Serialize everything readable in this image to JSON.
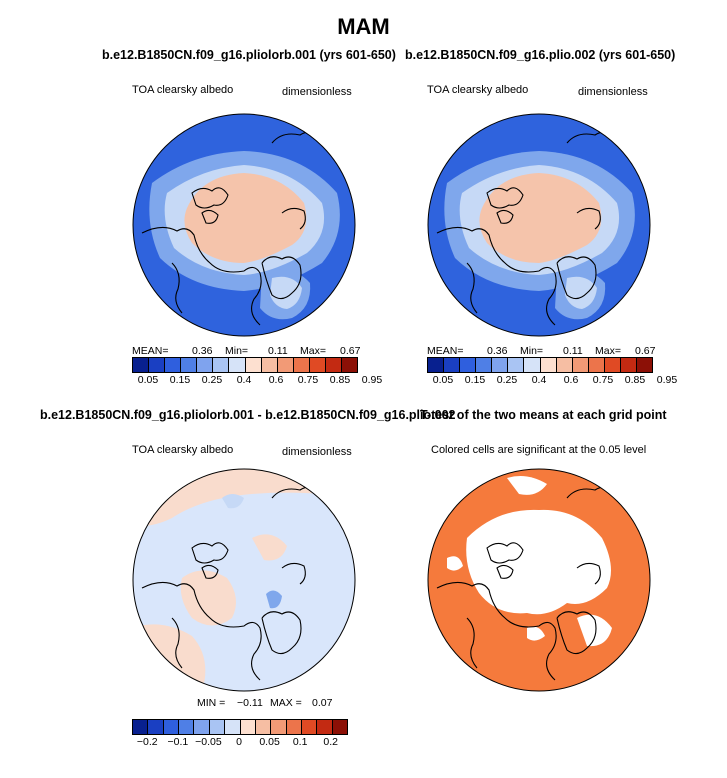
{
  "main_title": "MAM",
  "panels": [
    {
      "title": "b.e12.B1850CN.f09_g16.pliolorb.001 (yrs 601-650)",
      "left_label": "TOA clearsky albedo",
      "right_label": "dimensionless",
      "stats": {
        "mean_label": "MEAN=",
        "mean": "0.36",
        "min_label": "Min=",
        "min": "0.11",
        "max_label": "Max=",
        "max": "0.67"
      },
      "ticks": [
        "0.05",
        "0.15",
        "0.25",
        "0.4",
        "0.6",
        "0.75",
        "0.85",
        "0.95"
      ]
    },
    {
      "title": "b.e12.B1850CN.f09_g16.plio.002 (yrs 601-650)",
      "left_label": "TOA clearsky albedo",
      "right_label": "dimensionless",
      "stats": {
        "mean_label": "MEAN=",
        "mean": "0.36",
        "min_label": "Min=",
        "min": "0.11",
        "max_label": "Max=",
        "max": "0.67"
      },
      "ticks": [
        "0.05",
        "0.15",
        "0.25",
        "0.4",
        "0.6",
        "0.75",
        "0.85",
        "0.95"
      ]
    },
    {
      "title": "b.e12.B1850CN.f09_g16.pliolorb.001 - b.e12.B1850CN.f09_g16.plio.002",
      "left_label": "TOA clearsky albedo",
      "right_label": "dimensionless",
      "stats": {
        "min_label": "MIN =",
        "min": "−0.11",
        "max_label": "MAX =",
        "max": "0.07"
      },
      "ticks": [
        "−0.2",
        "−0.1",
        "−0.05",
        "0",
        "0.05",
        "0.1",
        "0.2"
      ]
    },
    {
      "title": "T-test of the two means at each grid point",
      "left_label": "Colored cells are significant at the 0.05 level"
    }
  ],
  "colors": {
    "ocean_blue": "#2f63dd",
    "mid_blue": "#7fa7ec",
    "light_blue": "#c6d9f6",
    "ice_peach": "#f5c4ab",
    "pale_peach": "#f9dccd",
    "diff_bg": "#d9e6fb",
    "signif": "#f57a3c",
    "land_outline": "#000000",
    "colorbar_abs": [
      "#08208f",
      "#1a3fc2",
      "#2f5fde",
      "#4f7fe6",
      "#7fa3ee",
      "#a9c4f3",
      "#d6e3f8",
      "#fde0d0",
      "#f6bea3",
      "#f29a76",
      "#ec744b",
      "#e04a24",
      "#c32a12",
      "#8c1006"
    ],
    "colorbar_diff": [
      "#08208f",
      "#1a3fc2",
      "#2f5fde",
      "#4f7fe6",
      "#7fa3ee",
      "#a9c4f3",
      "#d6e3f8",
      "#fde0d0",
      "#f6bea3",
      "#f29a76",
      "#ec744b",
      "#e04a24",
      "#c32a12",
      "#8c1006"
    ]
  }
}
